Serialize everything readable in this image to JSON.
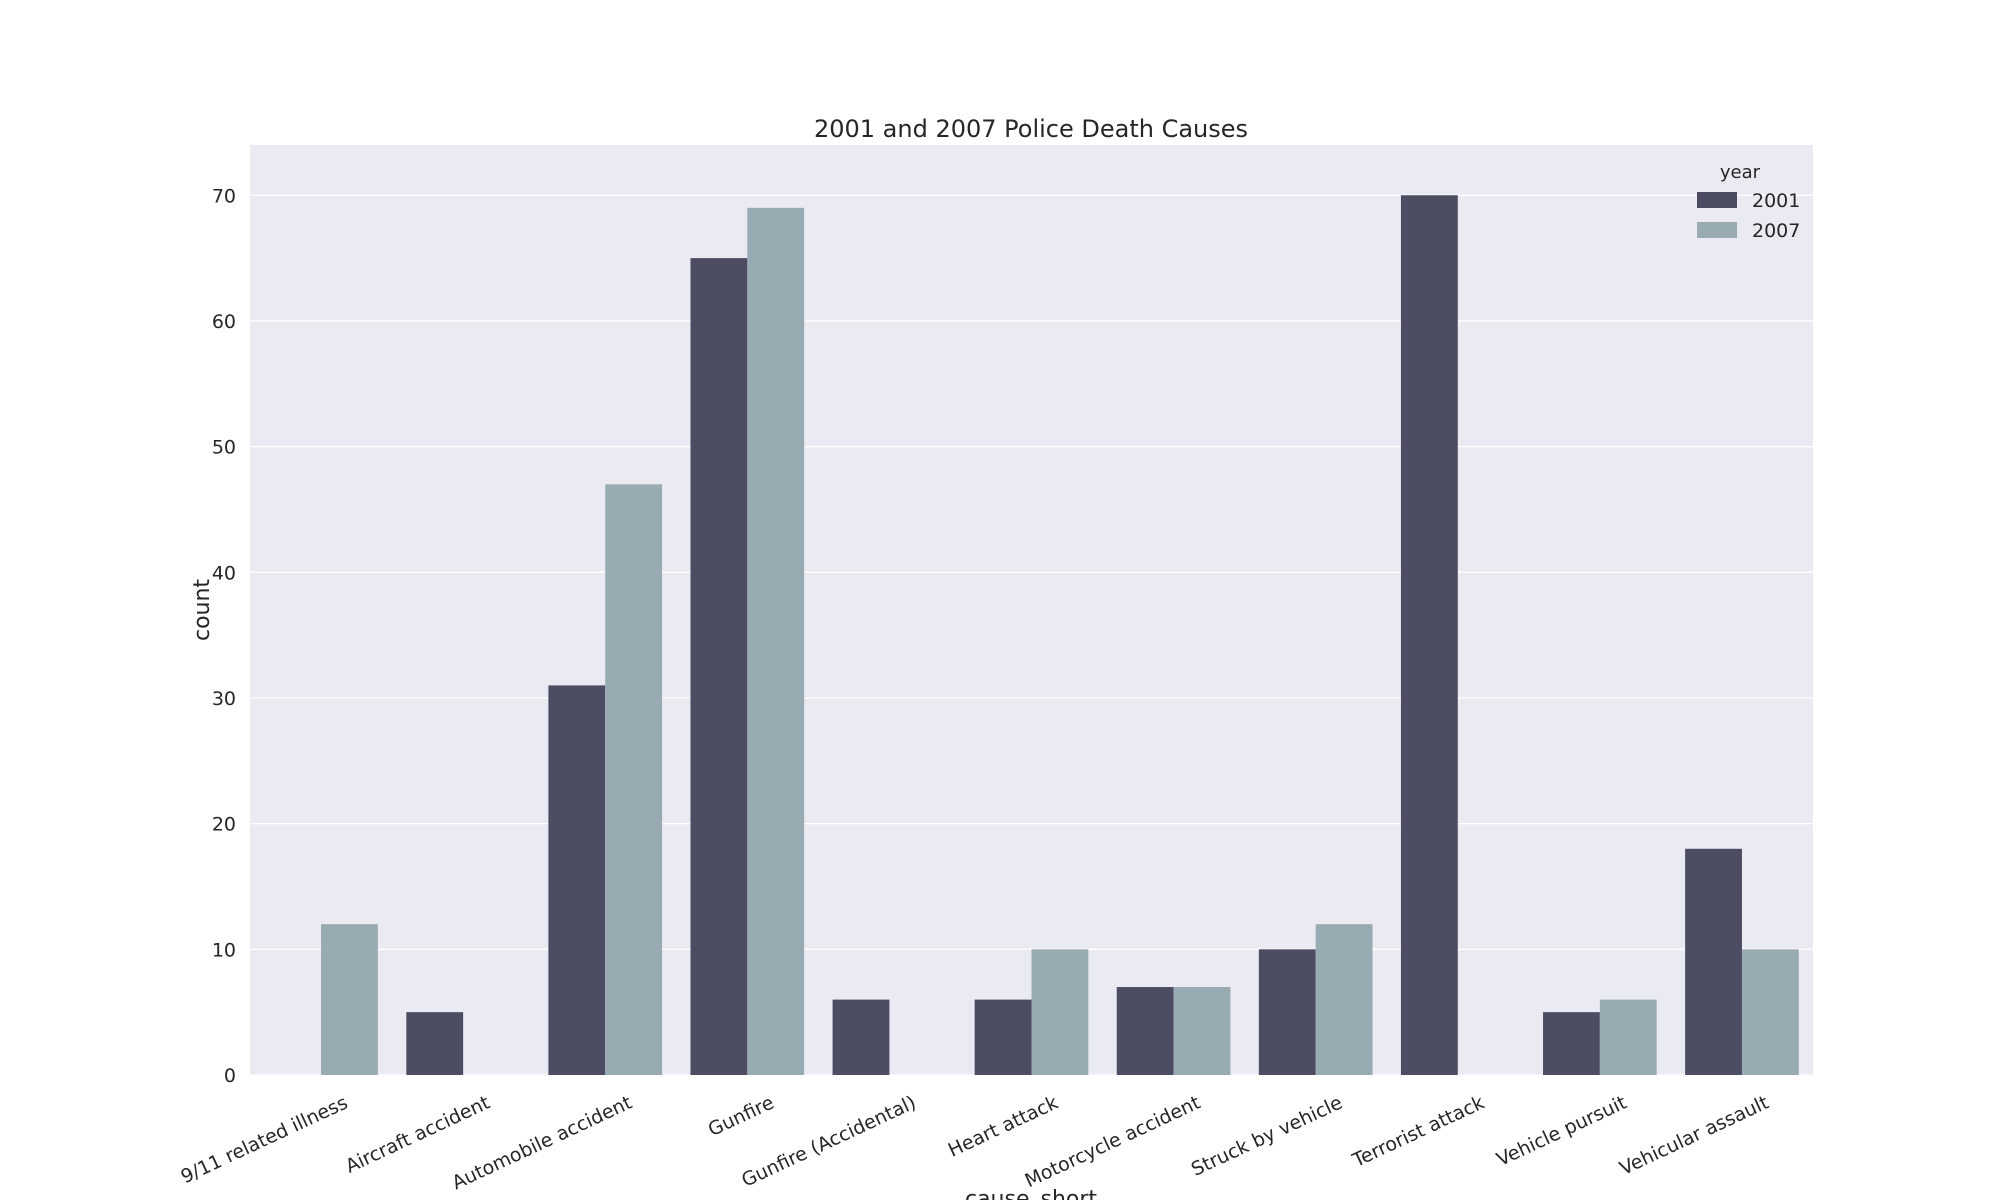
{
  "chart_data": {
    "type": "bar",
    "title": "2001 and 2007 Police Death Causes",
    "xlabel": "cause_short",
    "ylabel": "count",
    "ylim": [
      0,
      74
    ],
    "yticks": [
      0,
      10,
      20,
      30,
      40,
      50,
      60,
      70
    ],
    "grid": true,
    "legend_title": "year",
    "legend_position": "top-right",
    "categories": [
      "9/11 related illness",
      "Aircraft accident",
      "Automobile accident",
      "Gunfire",
      "Gunfire (Accidental)",
      "Heart attack",
      "Motorcycle accident",
      "Struck by vehicle",
      "Terrorist attack",
      "Vehicle pursuit",
      "Vehicular assault"
    ],
    "series": [
      {
        "name": "2001",
        "color": "#4c4c63",
        "values": [
          0,
          5,
          31,
          65,
          6,
          6,
          7,
          10,
          70,
          5,
          18
        ]
      },
      {
        "name": "2007",
        "color": "#99abb2",
        "values": [
          12,
          0,
          47,
          69,
          0,
          10,
          7,
          12,
          0,
          6,
          10
        ]
      }
    ],
    "background_color": "#eaeaf2",
    "grid_color": "#ffffff"
  }
}
